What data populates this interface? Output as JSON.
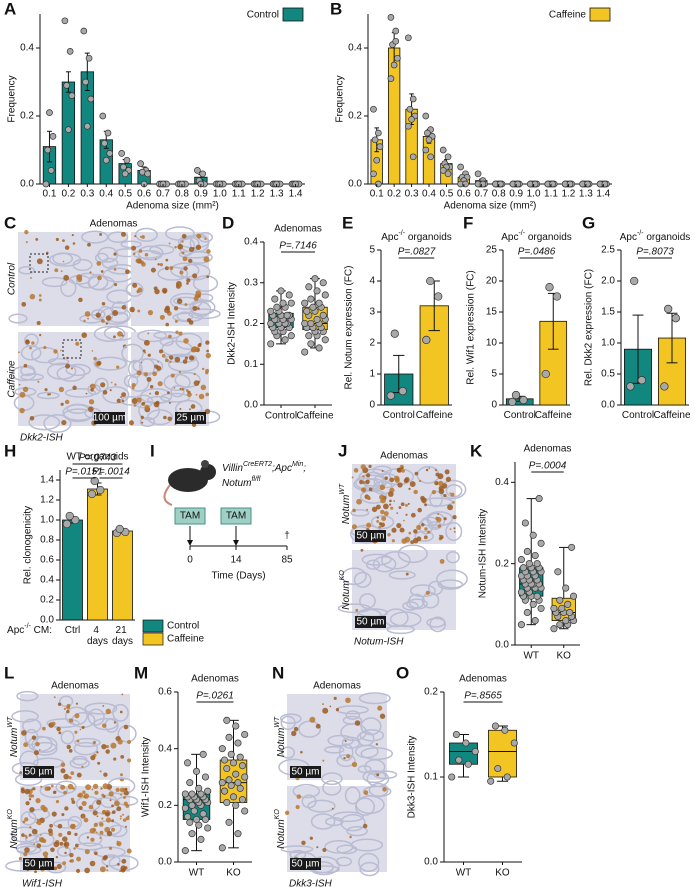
{
  "chart_data": [
    {
      "panel": "A",
      "type": "bar",
      "ylabel": "Frequency",
      "xlabel": "Adenoma size (mm²)",
      "legend": "upper right",
      "categories": [
        "0.1",
        "0.2",
        "0.3",
        "0.4",
        "0.5",
        "0.6",
        "0.7",
        "0.8",
        "0.9",
        "1.0",
        "1.1",
        "1.2",
        "1.3",
        "1.4"
      ],
      "series": [
        {
          "name": "Control",
          "color": "#12877f",
          "values": [
            0.11,
            0.3,
            0.33,
            0.13,
            0.06,
            0.04,
            0,
            0,
            0.02,
            0,
            0,
            0,
            0,
            0
          ],
          "errors": [
            0.045,
            0.03,
            0.055,
            0.025,
            0.012,
            0.01,
            0,
            0,
            0.008,
            0,
            0,
            0,
            0,
            0
          ],
          "points": [
            [
              0,
              0.04,
              0.1,
              0.14,
              0.21
            ],
            [
              0.48,
              0.39,
              0.29,
              0.26,
              0.16
            ],
            [
              0.45,
              0.37,
              0.3,
              0.25,
              0.17
            ],
            [
              0.2,
              0.15,
              0.12,
              0.09,
              0.07
            ],
            [
              0.09,
              0.07,
              0.05,
              0.04,
              0.03
            ],
            [
              0.06,
              0.04,
              0.035,
              0.03,
              0
            ],
            [
              0,
              0,
              0,
              0,
              0
            ],
            [
              0,
              0,
              0,
              0,
              0
            ],
            [
              0.04,
              0.03,
              0.01,
              0,
              0
            ],
            [
              0,
              0,
              0,
              0,
              0
            ],
            [
              0,
              0,
              0,
              0,
              0
            ],
            [
              0,
              0,
              0,
              0,
              0
            ],
            [
              0,
              0,
              0,
              0,
              0
            ],
            [
              0,
              0,
              0,
              0,
              0
            ]
          ]
        }
      ],
      "ylim": [
        0,
        0.5
      ],
      "yticks": [
        {
          "value": 0,
          "label": "0.0"
        },
        0.2,
        0.4
      ]
    },
    {
      "panel": "B",
      "type": "bar",
      "ylabel": "Frequency",
      "xlabel": "Adenoma size (mm²)",
      "legend": "upper right",
      "categories": [
        "0.1",
        "0.2",
        "0.3",
        "0.4",
        "0.5",
        "0.6",
        "0.7",
        "0.8",
        "0.9",
        "1.0",
        "1.1",
        "1.2",
        "1.3",
        "1.4"
      ],
      "series": [
        {
          "name": "Caffeine",
          "color": "#f2c523",
          "values": [
            0.13,
            0.4,
            0.22,
            0.14,
            0.06,
            0.02,
            0.01,
            0,
            0,
            0,
            0,
            0,
            0,
            0
          ],
          "errors": [
            0.035,
            0.045,
            0.045,
            0.02,
            0.012,
            0.007,
            0.004,
            0,
            0,
            0,
            0,
            0,
            0,
            0
          ],
          "points": [
            [
              0.22,
              0.15,
              0.13,
              0.11,
              0.07,
              0.03,
              0
            ],
            [
              0.49,
              0.45,
              0.41,
              0.37,
              0.35,
              0.31,
              0.42
            ],
            [
              0.43,
              0.25,
              0.22,
              0.2,
              0.19,
              0.17,
              0.08
            ],
            [
              0.2,
              0.16,
              0.15,
              0.14,
              0.13,
              0.1,
              0.08
            ],
            [
              0.1,
              0.08,
              0.06,
              0.05,
              0.05,
              0.04,
              0.03
            ],
            [
              0.05,
              0.03,
              0.02,
              0.02,
              0.01,
              0,
              0
            ],
            [
              0.03,
              0.01,
              0,
              0,
              0,
              0,
              0
            ],
            [
              0,
              0,
              0,
              0,
              0,
              0,
              0
            ],
            [
              0,
              0,
              0,
              0,
              0,
              0,
              0
            ],
            [
              0,
              0,
              0,
              0,
              0,
              0,
              0
            ],
            [
              0,
              0,
              0,
              0,
              0,
              0,
              0
            ],
            [
              0,
              0,
              0,
              0,
              0,
              0,
              0
            ],
            [
              0,
              0,
              0,
              0,
              0,
              0,
              0
            ],
            [
              0,
              0,
              0,
              0,
              0,
              0,
              0
            ]
          ]
        }
      ],
      "ylim": [
        0,
        0.5
      ],
      "yticks": [
        {
          "value": 0,
          "label": "0.0"
        },
        0.2,
        0.4
      ]
    },
    {
      "panel": "D",
      "type": "box",
      "title": "Adenomas",
      "ylabel": "Dkk2-ISH Intensity",
      "pvalue": "P=.7146",
      "categories": [
        "Control",
        "Caffeine"
      ],
      "colors": [
        "#12877f",
        "#f2c523"
      ],
      "boxes": [
        {
          "whislo": 0.15,
          "q1": 0.19,
          "med": 0.205,
          "q3": 0.225,
          "whishi": 0.28
        },
        {
          "whislo": 0.14,
          "q1": 0.185,
          "med": 0.2,
          "q3": 0.24,
          "whishi": 0.31
        }
      ],
      "points": [
        [
          0.15,
          0.16,
          0.17,
          0.17,
          0.18,
          0.18,
          0.19,
          0.19,
          0.19,
          0.2,
          0.2,
          0.2,
          0.2,
          0.21,
          0.21,
          0.21,
          0.21,
          0.22,
          0.22,
          0.22,
          0.22,
          0.23,
          0.23,
          0.24,
          0.24,
          0.25,
          0.25,
          0.26,
          0.27,
          0.28
        ],
        [
          0.13,
          0.14,
          0.15,
          0.16,
          0.17,
          0.17,
          0.18,
          0.18,
          0.19,
          0.19,
          0.19,
          0.2,
          0.2,
          0.2,
          0.21,
          0.21,
          0.22,
          0.22,
          0.23,
          0.23,
          0.24,
          0.24,
          0.25,
          0.25,
          0.26,
          0.27,
          0.28,
          0.29,
          0.3,
          0.31
        ]
      ],
      "ylim": [
        0,
        0.4
      ],
      "yticks": [
        {
          "value": 0,
          "label": "0.0"
        },
        0.1,
        0.2,
        0.3,
        0.4
      ]
    },
    {
      "panel": "E",
      "type": "bar",
      "title": [
        {
          "text": "Apc"
        },
        {
          "text": "-/-",
          "sup": true
        },
        {
          "text": " organoids"
        }
      ],
      "ylabel": "Rel. Notum expression (FC)",
      "pvalue": "P=.0827",
      "categories": [
        "Control",
        "Caffeine"
      ],
      "colors": [
        "#12877f",
        "#f2c523"
      ],
      "values": [
        1.0,
        3.2
      ],
      "errors": [
        0.6,
        0.8
      ],
      "points": [
        [
          0.3,
          0.45,
          2.3
        ],
        [
          2.1,
          3.5,
          4.0
        ]
      ],
      "ylim": [
        0,
        5
      ],
      "yticks": [
        0,
        1,
        2,
        3,
        4,
        5
      ]
    },
    {
      "panel": "F",
      "type": "bar",
      "title": [
        {
          "text": "Apc"
        },
        {
          "text": "-/-",
          "sup": true
        },
        {
          "text": " organoids"
        }
      ],
      "ylabel": "Rel. Wif1 expression (FC)",
      "pvalue": "P=.0486",
      "categories": [
        "Control",
        "Caffeine"
      ],
      "colors": [
        "#12877f",
        "#f2c523"
      ],
      "values": [
        1.0,
        13.5
      ],
      "errors": [
        0.4,
        4.5
      ],
      "points": [
        [
          0.5,
          0.8,
          1.6
        ],
        [
          5,
          17.5,
          19
        ]
      ],
      "ylim": [
        0,
        25
      ],
      "yticks": [
        0,
        5,
        10,
        15,
        20,
        25
      ]
    },
    {
      "panel": "G",
      "type": "bar",
      "title": [
        {
          "text": "Apc"
        },
        {
          "text": "-/-",
          "sup": true
        },
        {
          "text": " organoids"
        }
      ],
      "ylabel": "Rel. Dkk2 expression (FC)",
      "pvalue": "P=.8073",
      "categories": [
        "Control",
        "Caffeine"
      ],
      "colors": [
        "#12877f",
        "#f2c523"
      ],
      "values": [
        0.9,
        1.08
      ],
      "errors": [
        0.55,
        0.4
      ],
      "points": [
        [
          0.3,
          0.4,
          2.0
        ],
        [
          0.3,
          1.4,
          1.55
        ]
      ],
      "ylim": [
        0,
        2.5
      ],
      "yticks": [
        {
          "value": 0,
          "label": "0.0"
        },
        0.5,
        {
          "value": 1,
          "label": "1.0"
        },
        1.5,
        {
          "value": 2,
          "label": "2.0"
        },
        2.5
      ]
    },
    {
      "panel": "H",
      "type": "bar",
      "title": "WT organoids",
      "ylabel": "Rel. clonogenicity",
      "xprefix": [
        {
          "text": "Apc"
        },
        {
          "text": "-/-",
          "sup": true
        },
        {
          "text": " CM:"
        }
      ],
      "annotations": [
        "P=.0743",
        "P=.0151",
        "P=.0014"
      ],
      "legend": [
        {
          "name": "Control",
          "color": "#12877f"
        },
        {
          "name": "Caffeine",
          "color": "#f2c523"
        }
      ],
      "categories": [
        "Ctrl",
        "4 days",
        "21 days"
      ],
      "colors": [
        "#12877f",
        "#f2c523",
        "#f2c523"
      ],
      "values": [
        1.0,
        1.31,
        0.89
      ],
      "errors": [
        0.03,
        0.06,
        0.02
      ],
      "points": [
        [
          0.96,
          1.0,
          1.04
        ],
        [
          1.26,
          1.3,
          1.39
        ],
        [
          0.87,
          0.88,
          0.91
        ]
      ],
      "ylim": [
        0,
        1.5
      ],
      "yticks": [
        {
          "value": 0,
          "label": "0.0"
        },
        0.2,
        0.4,
        0.6,
        0.8,
        {
          "value": 1,
          "label": "1.0"
        },
        1.2,
        1.4
      ]
    },
    {
      "panel": "K",
      "type": "box",
      "title": "Adenomas",
      "ylabel": "Notum-ISH Intensity",
      "pvalue": "P=.0004",
      "categories": [
        "WT",
        "KO"
      ],
      "colors": [
        "#12877f",
        "#f2c523"
      ],
      "boxes": [
        {
          "whislo": 0.05,
          "q1": 0.12,
          "med": 0.15,
          "q3": 0.19,
          "whishi": 0.36
        },
        {
          "whislo": 0.04,
          "q1": 0.06,
          "med": 0.08,
          "q3": 0.115,
          "whishi": 0.24
        }
      ],
      "points": [
        [
          0.05,
          0.06,
          0.08,
          0.09,
          0.1,
          0.11,
          0.11,
          0.12,
          0.12,
          0.12,
          0.13,
          0.13,
          0.14,
          0.14,
          0.14,
          0.15,
          0.15,
          0.15,
          0.15,
          0.16,
          0.16,
          0.16,
          0.17,
          0.17,
          0.17,
          0.18,
          0.18,
          0.18,
          0.19,
          0.19,
          0.19,
          0.2,
          0.2,
          0.21,
          0.22,
          0.23,
          0.25,
          0.27,
          0.3,
          0.36
        ],
        [
          0.04,
          0.05,
          0.05,
          0.06,
          0.06,
          0.07,
          0.07,
          0.08,
          0.08,
          0.08,
          0.09,
          0.09,
          0.1,
          0.11,
          0.12,
          0.14,
          0.18,
          0.24
        ]
      ],
      "ylim": [
        0,
        0.45
      ],
      "yticks": [
        {
          "value": 0,
          "label": "0.0"
        },
        0.2,
        0.4
      ]
    },
    {
      "panel": "M",
      "type": "box",
      "title": "Adenomas",
      "ylabel": "Wif1-ISH Intensity",
      "pvalue": "P=.0261",
      "categories": [
        "WT",
        "KO"
      ],
      "colors": [
        "#12877f",
        "#f2c523"
      ],
      "boxes": [
        {
          "whislo": 0.04,
          "q1": 0.15,
          "med": 0.22,
          "q3": 0.24,
          "whishi": 0.38
        },
        {
          "whislo": 0.05,
          "q1": 0.21,
          "med": 0.28,
          "q3": 0.36,
          "whishi": 0.5
        }
      ],
      "points": [
        [
          0.04,
          0.08,
          0.1,
          0.12,
          0.13,
          0.14,
          0.15,
          0.15,
          0.16,
          0.17,
          0.18,
          0.19,
          0.2,
          0.2,
          0.21,
          0.21,
          0.22,
          0.22,
          0.22,
          0.23,
          0.23,
          0.23,
          0.24,
          0.24,
          0.24,
          0.25,
          0.26,
          0.28,
          0.3,
          0.32,
          0.35,
          0.38
        ],
        [
          0.05,
          0.1,
          0.14,
          0.18,
          0.2,
          0.21,
          0.22,
          0.23,
          0.25,
          0.26,
          0.27,
          0.28,
          0.28,
          0.29,
          0.3,
          0.31,
          0.33,
          0.34,
          0.35,
          0.36,
          0.37,
          0.38,
          0.4,
          0.42,
          0.44,
          0.45,
          0.48,
          0.5
        ]
      ],
      "ylim": [
        0,
        0.6
      ],
      "yticks": [
        {
          "value": 0,
          "label": "0.0"
        },
        0.2,
        0.4,
        0.6
      ]
    },
    {
      "panel": "O",
      "type": "box",
      "title": "Adenomas",
      "ylabel": "Dkk3-ISH Intensity",
      "pvalue": "P=.8565",
      "categories": [
        "WT",
        "KO"
      ],
      "colors": [
        "#12877f",
        "#f2c523"
      ],
      "boxes": [
        {
          "whislo": 0.1,
          "q1": 0.115,
          "med": 0.13,
          "q3": 0.14,
          "whishi": 0.15
        },
        {
          "whislo": 0.095,
          "q1": 0.1,
          "med": 0.13,
          "q3": 0.155,
          "whishi": 0.16
        }
      ],
      "points": [
        [
          0.1,
          0.115,
          0.12,
          0.13,
          0.14,
          0.15
        ],
        [
          0.095,
          0.1,
          0.11,
          0.14,
          0.155,
          0.16
        ]
      ],
      "ylim": [
        0,
        0.2
      ],
      "yticks": [
        {
          "value": 0,
          "label": "0.0"
        },
        0.1,
        0.2
      ]
    }
  ],
  "micrographs": [
    {
      "panel": "C",
      "title": "Adenomas",
      "rows": [
        "Control",
        "Caffeine"
      ],
      "scalebars": [
        "100 µm",
        "25 µm"
      ],
      "stain": "Dkk2-ISH"
    },
    {
      "panel": "J",
      "title": "Adenomas",
      "rows": [
        [
          {
            "text": "Notum"
          },
          {
            "text": "WT",
            "sup": true
          }
        ],
        [
          {
            "text": "Notum"
          },
          {
            "text": "KO",
            "sup": true
          }
        ]
      ],
      "scalebars": [
        "50 µm",
        "50 µm"
      ],
      "stain": "Notum-ISH"
    },
    {
      "panel": "L",
      "title": "Adenomas",
      "rows": [
        [
          {
            "text": "Notum"
          },
          {
            "text": "WT",
            "sup": true
          }
        ],
        [
          {
            "text": "Notum"
          },
          {
            "text": "KO",
            "sup": true
          }
        ]
      ],
      "scalebars": [
        "50 µm",
        "50 µm"
      ],
      "stain": "Wif1-ISH"
    },
    {
      "panel": "N",
      "title": "Adenomas",
      "rows": [
        [
          {
            "text": "Notum"
          },
          {
            "text": "WT",
            "sup": true
          }
        ],
        [
          {
            "text": "Notum"
          },
          {
            "text": "KO",
            "sup": true
          }
        ]
      ],
      "scalebars": [
        "50 µm",
        "50 µm"
      ],
      "stain": "Dkk3-ISH"
    }
  ],
  "timeline": {
    "panel": "I",
    "genotype": [
      [
        {
          "text": "Villin"
        },
        {
          "text": "CreERT2",
          "sup": true
        },
        {
          "text": ";Apc"
        },
        {
          "text": "Min",
          "sup": true
        },
        {
          "text": ";"
        }
      ],
      [
        {
          "text": "Notum"
        },
        {
          "text": "fl/fl",
          "sup": true
        }
      ]
    ],
    "events": [
      "TAM",
      "TAM"
    ],
    "ticks": [
      0,
      14,
      85
    ],
    "end_marker": "†",
    "xlabel": "Time (Days)"
  }
}
